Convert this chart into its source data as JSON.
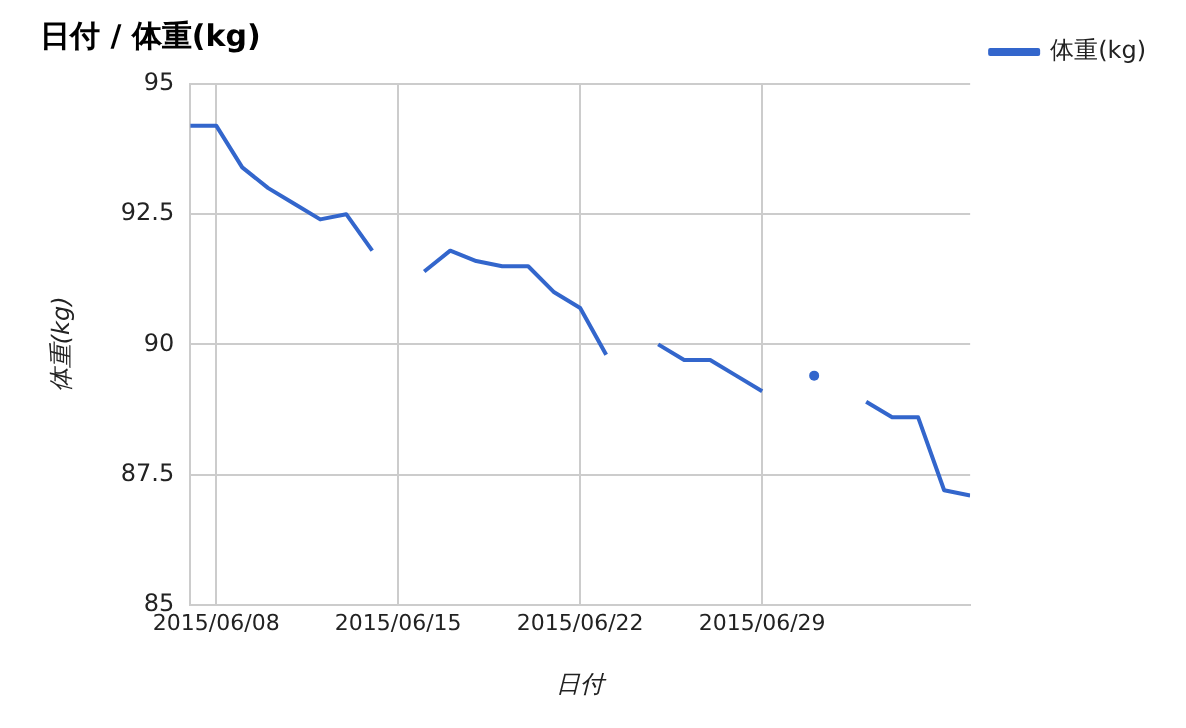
{
  "chart_data": {
    "type": "line",
    "title": "日付 / 体重(kg)",
    "xlabel": "日付",
    "ylabel": "体重(kg)",
    "x": [
      "2015-06-07",
      "2015-06-08",
      "2015-06-09",
      "2015-06-10",
      "2015-06-11",
      "2015-06-12",
      "2015-06-13",
      "2015-06-14",
      "2015-06-15",
      "2015-06-16",
      "2015-06-17",
      "2015-06-18",
      "2015-06-19",
      "2015-06-20",
      "2015-06-21",
      "2015-06-22",
      "2015-06-23",
      "2015-06-24",
      "2015-06-25",
      "2015-06-26",
      "2015-06-27",
      "2015-06-28",
      "2015-06-29",
      "2015-06-30",
      "2015-07-01",
      "2015-07-02",
      "2015-07-03",
      "2015-07-04",
      "2015-07-05",
      "2015-07-06",
      "2015-07-07"
    ],
    "series": [
      {
        "name": "体重(kg)",
        "color": "#3366cc",
        "values": [
          94.2,
          94.2,
          93.4,
          93.0,
          92.7,
          92.4,
          92.5,
          91.8,
          null,
          91.4,
          91.8,
          91.6,
          91.5,
          91.5,
          91.0,
          90.7,
          89.8,
          null,
          90.0,
          89.7,
          89.7,
          89.4,
          89.1,
          null,
          89.4,
          null,
          88.9,
          88.6,
          88.6,
          87.2,
          87.1
        ]
      }
    ],
    "xlim": [
      "2015-06-07",
      "2015-07-07"
    ],
    "xticks": [
      {
        "value": "2015-06-08",
        "label": "2015/06/08"
      },
      {
        "value": "2015-06-15",
        "label": "2015/06/15"
      },
      {
        "value": "2015-06-22",
        "label": "2015/06/22"
      },
      {
        "value": "2015-06-29",
        "label": "2015/06/29"
      }
    ],
    "ylim": [
      85,
      95
    ],
    "yticks": [
      85,
      87.5,
      90,
      92.5,
      95
    ],
    "grid": true,
    "legend": "top right"
  }
}
